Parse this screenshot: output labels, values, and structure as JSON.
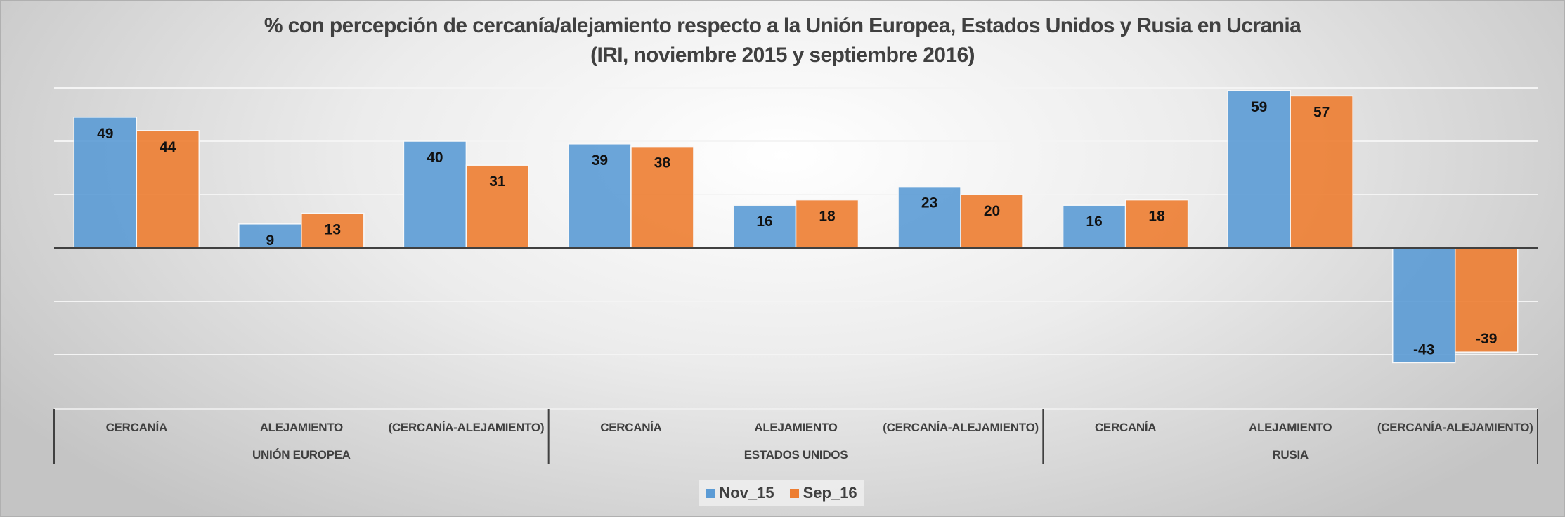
{
  "chart_data": {
    "type": "bar",
    "title": "% con percepción de cercanía/alejamiento respecto a la Unión Europea, Estados Unidos y Rusia en Ucrania",
    "subtitle": "(IRI, noviembre 2015 y septiembre 2016)",
    "groups": [
      {
        "name": "UNIÓN EUROPEA",
        "categories": [
          "CERCANÍA",
          "ALEJAMIENTO",
          "(CERCANÍA-ALEJAMIENTO)"
        ]
      },
      {
        "name": "ESTADOS UNIDOS",
        "categories": [
          "CERCANÍA",
          "ALEJAMIENTO",
          "(CERCANÍA-ALEJAMIENTO)"
        ]
      },
      {
        "name": "RUSIA",
        "categories": [
          "CERCANÍA",
          "ALEJAMIENTO",
          "(CERCANÍA-ALEJAMIENTO)"
        ]
      }
    ],
    "categories": [
      "CERCANÍA",
      "ALEJAMIENTO",
      "(CERCANÍA-ALEJAMIENTO)",
      "CERCANÍA",
      "ALEJAMIENTO",
      "(CERCANÍA-ALEJAMIENTO)",
      "CERCANÍA",
      "ALEJAMIENTO",
      "(CERCANÍA-ALEJAMIENTO)"
    ],
    "series": [
      {
        "name": "Nov_15",
        "color": "#5b9bd5",
        "values": [
          49,
          9,
          40,
          39,
          16,
          23,
          16,
          59,
          -43
        ]
      },
      {
        "name": "Sep_16",
        "color": "#ed7d31",
        "values": [
          44,
          13,
          31,
          38,
          18,
          20,
          18,
          57,
          -39
        ]
      }
    ],
    "xlabel": "",
    "ylabel": "",
    "ylim": [
      -40,
      60
    ],
    "gridlines": [
      -40,
      -20,
      0,
      20,
      40,
      60
    ],
    "grid": true,
    "legend_position": "bottom"
  }
}
